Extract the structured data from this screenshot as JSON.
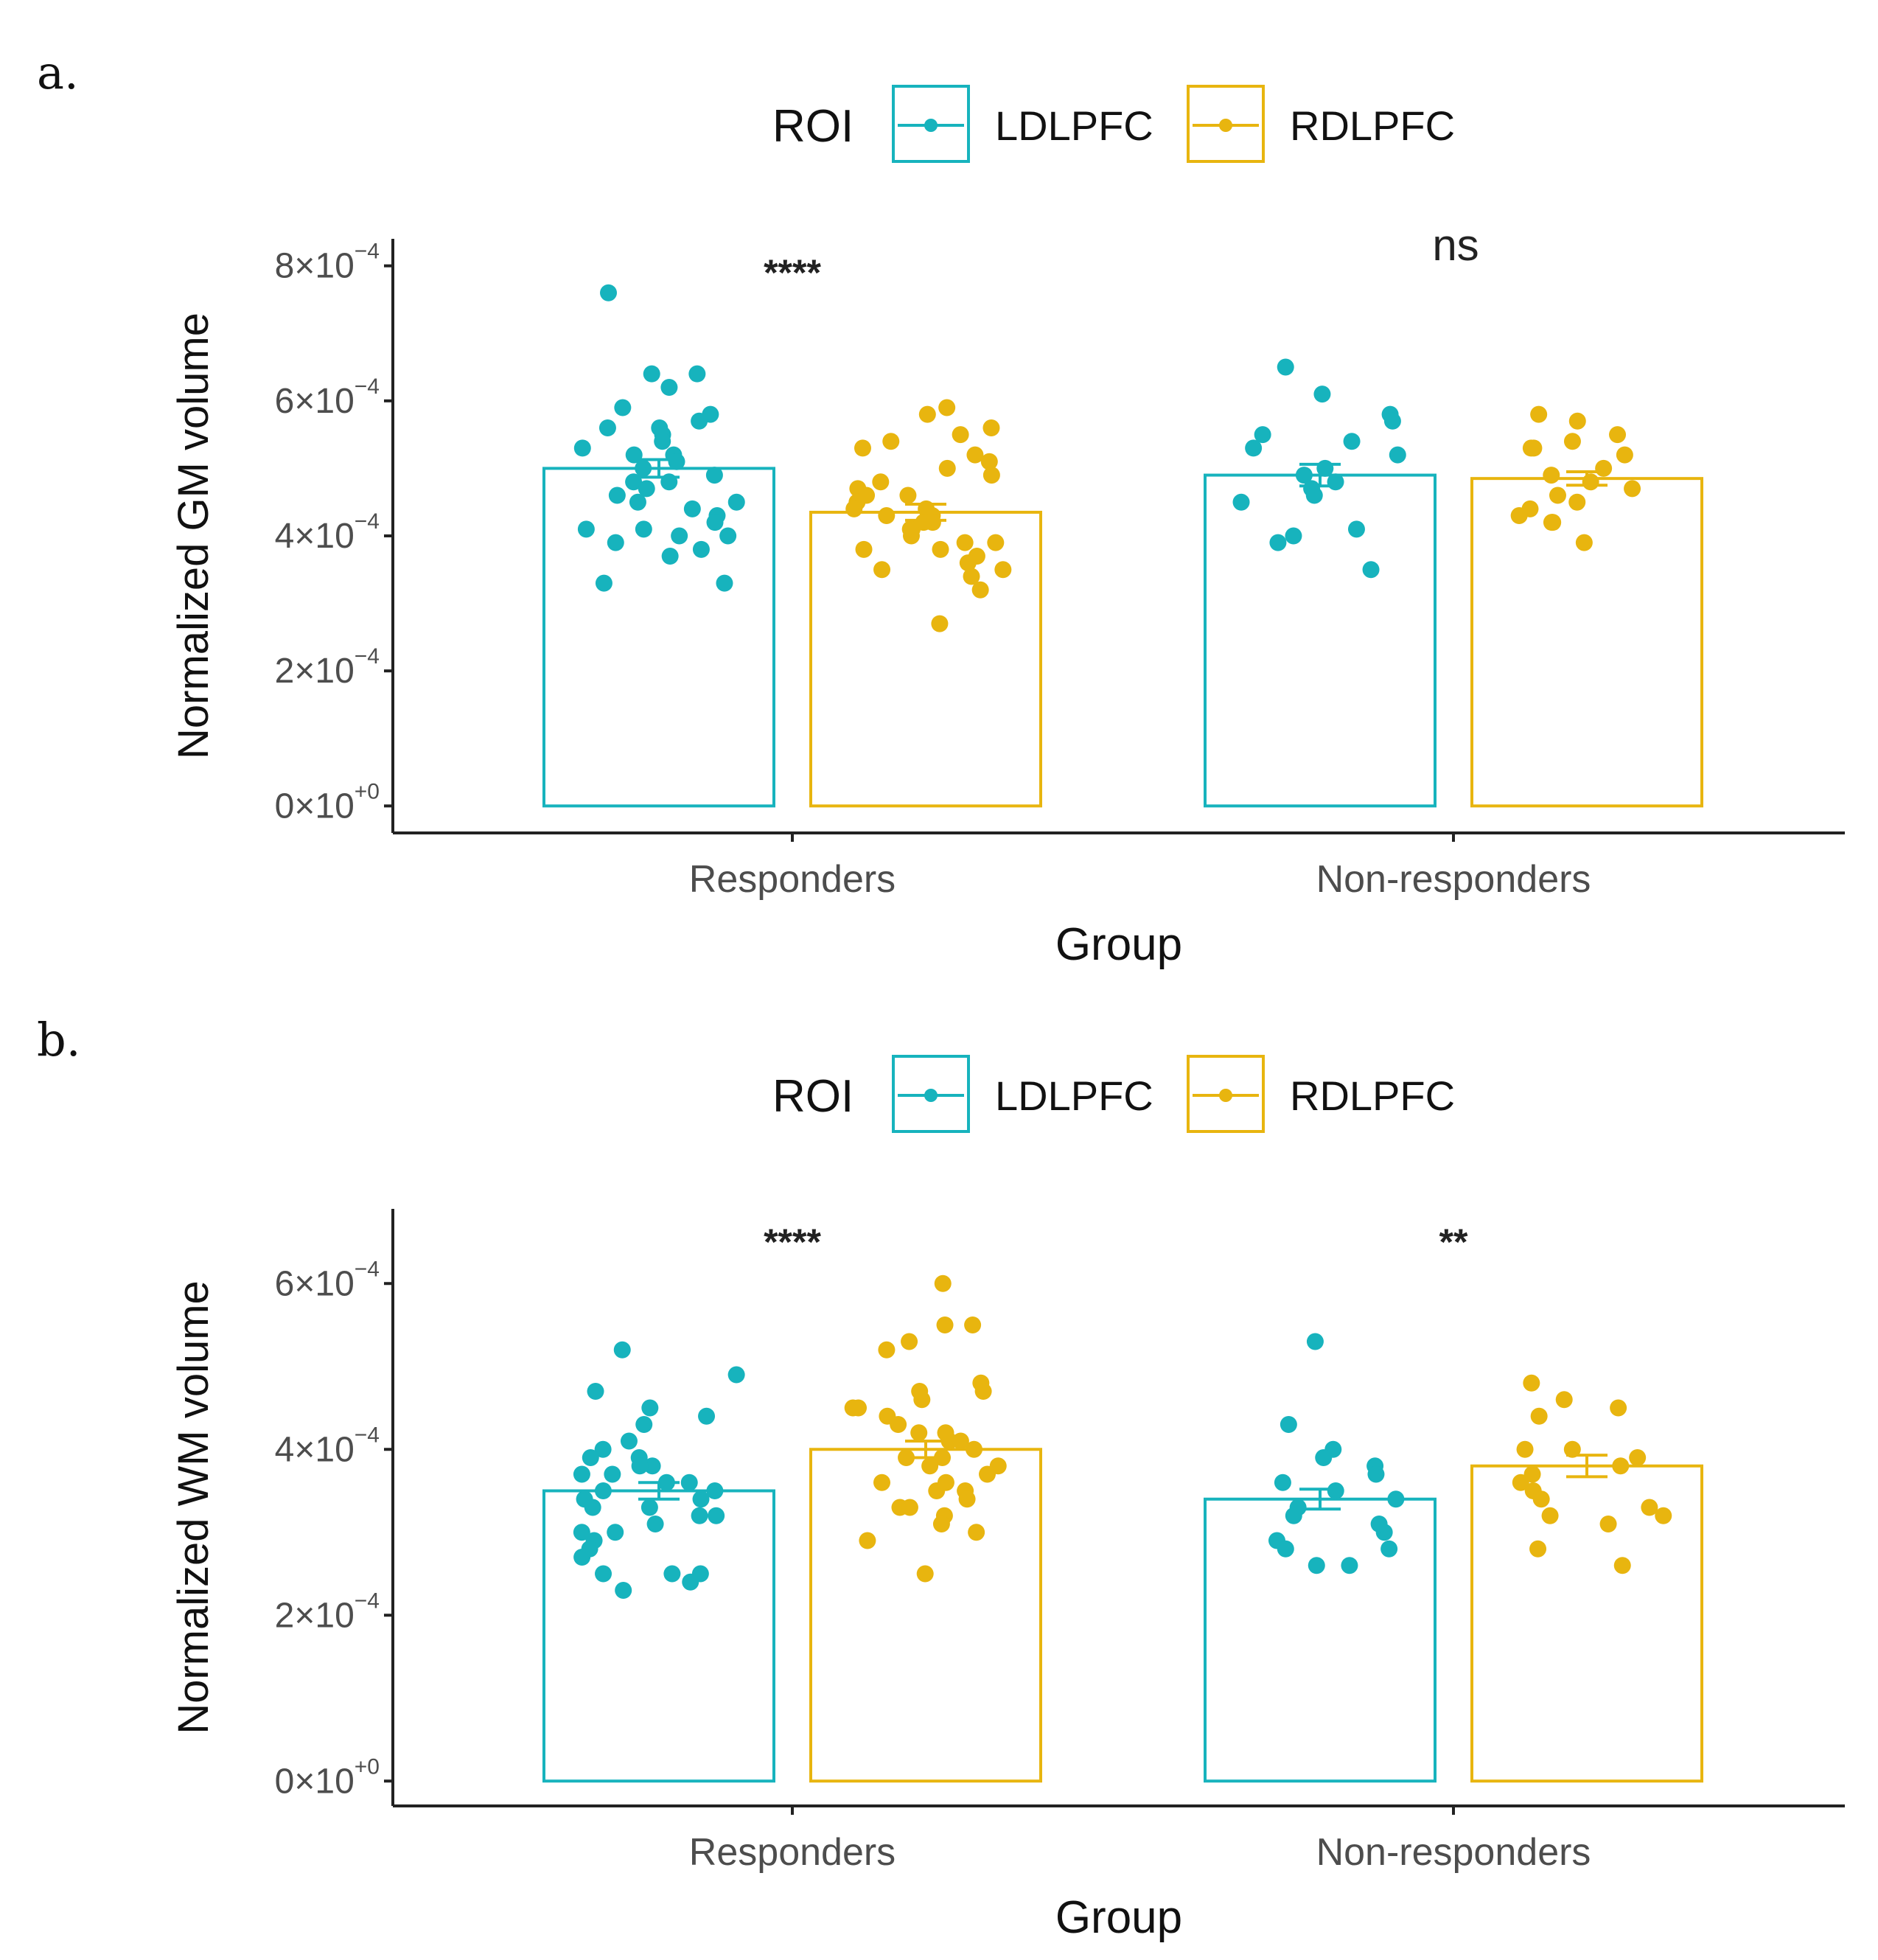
{
  "colors": {
    "ldlpfc": "#17b3bd",
    "rdlpfc": "#e8b50f",
    "axis": "#222222",
    "tick_text": "#4d4d4d"
  },
  "chart_data": [
    {
      "panel_label": "a.",
      "type": "bar",
      "legend": {
        "title": "ROI",
        "position": "top",
        "entries": [
          "LDLPFC",
          "RDLPFC"
        ]
      },
      "xlabel": "Group",
      "ylabel": "Normalized GM volume",
      "categories": [
        "Responders",
        "Non-responders"
      ],
      "y_scale": 0.0001,
      "ylim": [
        -0.4,
        8.4
      ],
      "y_ticks": [
        {
          "value": 0,
          "mantissa": "0",
          "exponent": "+0"
        },
        {
          "value": 2,
          "mantissa": "2",
          "exponent": "-4"
        },
        {
          "value": 4,
          "mantissa": "4",
          "exponent": "-4"
        },
        {
          "value": 6,
          "mantissa": "6",
          "exponent": "-4"
        },
        {
          "value": 8,
          "mantissa": "8",
          "exponent": "-4"
        }
      ],
      "significance": [
        "****",
        "ns"
      ],
      "series": [
        {
          "name": "LDLPFC",
          "values": [
            5.0,
            4.9
          ],
          "se": [
            0.13,
            0.16
          ],
          "points": [
            [
              7.6,
              6.4,
              6.2,
              6.4,
              5.9,
              5.8,
              5.7,
              5.6,
              5.5,
              5.4,
              5.3,
              5.2,
              5.1,
              5.0,
              4.9,
              4.8,
              4.7,
              4.6,
              4.5,
              4.4,
              4.3,
              4.2,
              4.1,
              4.0,
              4.0,
              3.9,
              3.8,
              3.3,
              3.3,
              5.6,
              5.2,
              4.8,
              4.5,
              4.1,
              3.7
            ],
            [
              6.1,
              6.5,
              5.8,
              5.7,
              5.5,
              5.4,
              5.3,
              5.2,
              5.0,
              4.9,
              4.8,
              4.7,
              4.6,
              4.5,
              4.1,
              4.0,
              3.9,
              3.5
            ]
          ]
        },
        {
          "name": "RDLPFC",
          "values": [
            4.35,
            4.85
          ],
          "se": [
            0.12,
            0.1
          ],
          "points": [
            [
              5.9,
              5.8,
              5.6,
              5.5,
              5.3,
              5.4,
              5.1,
              5.0,
              4.9,
              4.7,
              4.6,
              4.5,
              4.4,
              4.3,
              4.3,
              4.2,
              4.1,
              4.0,
              3.9,
              3.8,
              3.7,
              3.6,
              3.5,
              3.4,
              3.2,
              2.7,
              4.6,
              4.4,
              4.2,
              3.9,
              3.5,
              3.8,
              4.1,
              4.8,
              5.2
            ],
            [
              5.8,
              5.7,
              5.5,
              5.4,
              5.3,
              5.2,
              5.0,
              4.9,
              4.8,
              4.6,
              4.5,
              4.4,
              4.3,
              4.2,
              4.2,
              3.9,
              4.7,
              5.3
            ]
          ]
        }
      ]
    },
    {
      "panel_label": "b.",
      "type": "bar",
      "legend": {
        "title": "ROI",
        "position": "top",
        "entries": [
          "LDLPFC",
          "RDLPFC"
        ]
      },
      "xlabel": "Group",
      "ylabel": "Normalized WM volume",
      "categories": [
        "Responders",
        "Non-responders"
      ],
      "y_scale": 0.0001,
      "ylim": [
        -0.3,
        6.9
      ],
      "y_ticks": [
        {
          "value": 0,
          "mantissa": "0",
          "exponent": "+0"
        },
        {
          "value": 2,
          "mantissa": "2",
          "exponent": "-4"
        },
        {
          "value": 4,
          "mantissa": "4",
          "exponent": "-4"
        },
        {
          "value": 6,
          "mantissa": "6",
          "exponent": "-4"
        }
      ],
      "significance": [
        "****",
        "**"
      ],
      "series": [
        {
          "name": "LDLPFC",
          "values": [
            3.5,
            3.4
          ],
          "se": [
            0.1,
            0.12
          ],
          "points": [
            [
              5.2,
              4.9,
              4.7,
              4.5,
              4.4,
              4.3,
              4.1,
              4.0,
              3.9,
              3.8,
              3.7,
              3.7,
              3.6,
              3.5,
              3.4,
              3.4,
              3.3,
              3.2,
              3.1,
              3.0,
              2.9,
              2.8,
              2.7,
              2.5,
              2.5,
              2.5,
              2.4,
              2.3,
              3.9,
              3.6,
              3.3,
              3.0,
              3.5,
              3.8,
              3.2
            ],
            [
              5.3,
              4.3,
              4.0,
              3.9,
              3.8,
              3.7,
              3.6,
              3.5,
              3.4,
              3.3,
              3.2,
              3.0,
              2.9,
              2.8,
              2.8,
              2.6,
              2.6,
              3.1
            ]
          ]
        },
        {
          "name": "RDLPFC",
          "values": [
            4.0,
            3.8
          ],
          "se": [
            0.1,
            0.13
          ],
          "points": [
            [
              6.0,
              5.5,
              5.5,
              5.3,
              5.2,
              4.8,
              4.7,
              4.6,
              4.5,
              4.5,
              4.3,
              4.2,
              4.1,
              4.0,
              3.9,
              3.8,
              3.7,
              3.6,
              3.5,
              3.4,
              3.3,
              3.2,
              3.1,
              3.0,
              2.9,
              2.5,
              4.4,
              4.2,
              3.8,
              3.5,
              3.3,
              3.6,
              4.7,
              3.9,
              4.1
            ],
            [
              4.8,
              4.6,
              4.5,
              4.4,
              4.0,
              3.9,
              3.8,
              3.7,
              3.6,
              3.5,
              3.4,
              3.3,
              3.2,
              3.2,
              3.1,
              2.8,
              2.6,
              4.0
            ]
          ]
        }
      ]
    }
  ]
}
